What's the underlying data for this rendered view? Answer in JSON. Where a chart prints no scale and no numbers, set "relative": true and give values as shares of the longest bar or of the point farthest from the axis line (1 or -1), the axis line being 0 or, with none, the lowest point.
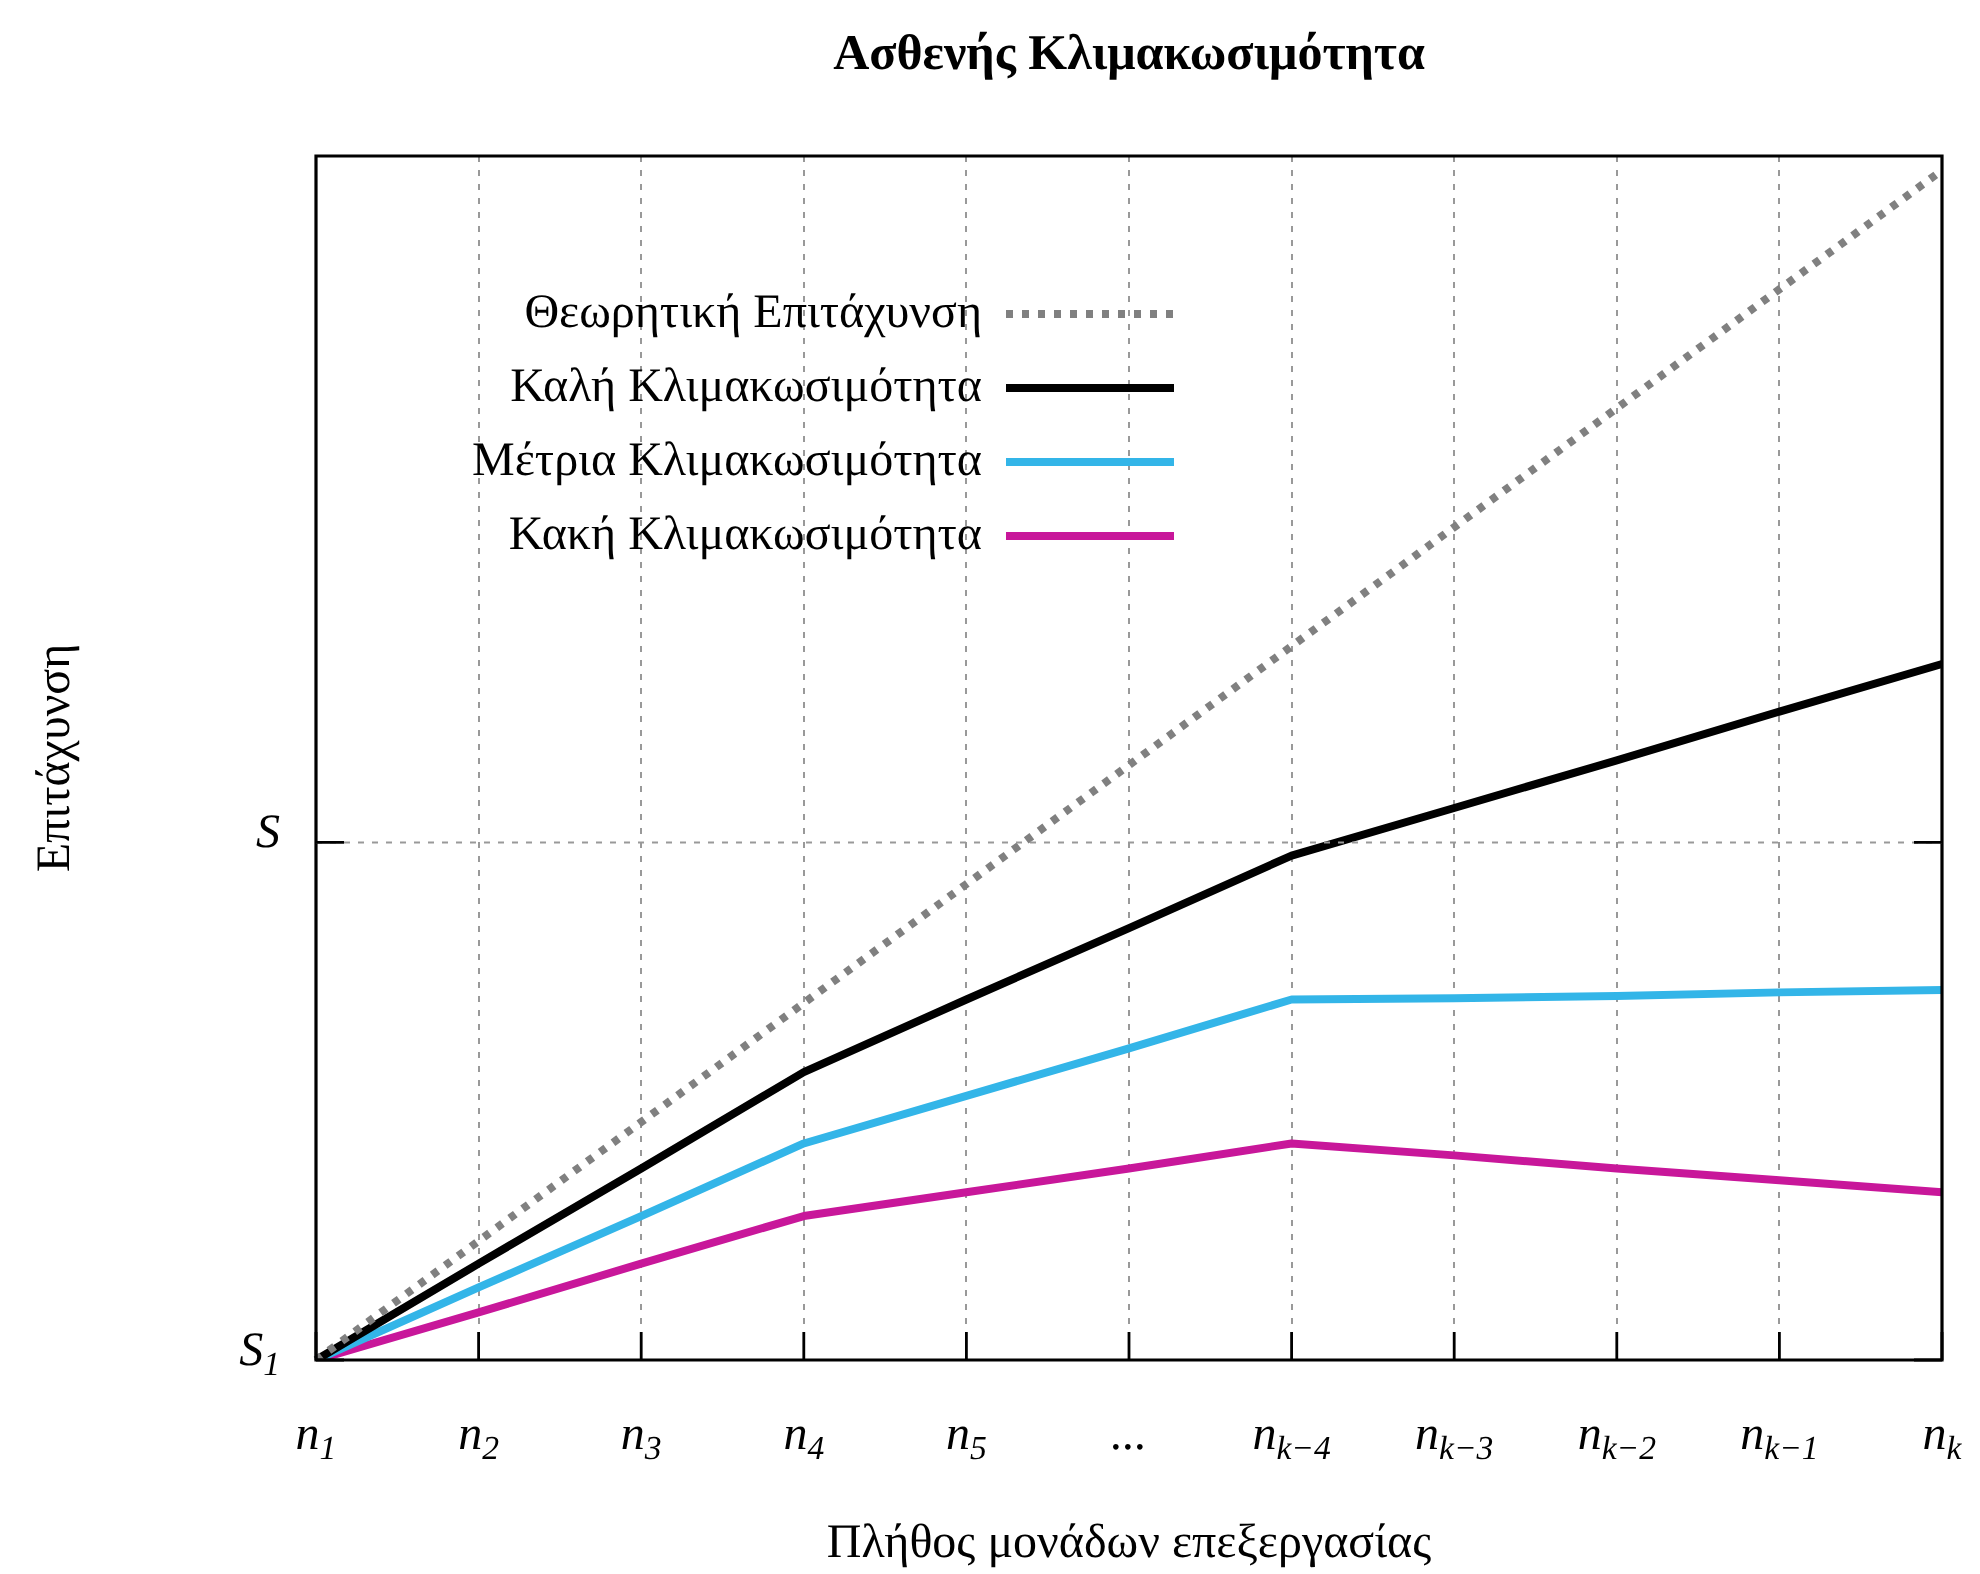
{
  "chart_data": {
    "type": "line",
    "title": "Ασθενής Κλιμακωσιμότητα",
    "xlabel": "Πλήθος μονάδων επεξεργασίας",
    "ylabel": "Επιτάχυνση",
    "categories": [
      "n$_{1}$",
      "n$_{2}$",
      "n$_{3}$",
      "n$_{4}$",
      "n$_{5}$",
      "...",
      "n$_{k−4}$",
      "n$_{k−3}$",
      "n$_{k−2}$",
      "n$_{k−1}$",
      "n$_{k}$"
    ],
    "relative": true,
    "ref_lines": [
      {
        "axis": "y",
        "value": 0,
        "label": "S$_{1}$"
      },
      {
        "axis": "y",
        "value": 0.435,
        "label": "S",
        "color": "#999999",
        "line_style": "dashed"
      }
    ],
    "grid": "x",
    "legend": "top left",
    "marker": "none",
    "series": [
      {
        "name": "Θεωρητική Επιτάχυνση",
        "color": "#808080",
        "line_style": "dotted",
        "values": [
          0,
          0.1,
          0.2,
          0.3,
          0.4,
          0.5,
          0.6,
          0.7,
          0.8,
          0.9,
          1
        ]
      },
      {
        "name": "Καλή Κλιμακωσιμότητα",
        "color": "#000000",
        "line_style": "solid",
        "values": [
          0,
          0.081,
          0.161,
          0.242,
          0.303,
          0.363,
          0.424,
          0.464,
          0.504,
          0.545,
          0.585
        ]
      },
      {
        "name": "Μέτρια Κλιμακωσιμότητα",
        "color": "#33b5e8",
        "line_style": "solid",
        "values": [
          0,
          0.061,
          0.121,
          0.182,
          0.222,
          0.262,
          0.303,
          0.304,
          0.306,
          0.309,
          0.311
        ]
      },
      {
        "name": "Κακή Κλιμακωσιμότητα",
        "color": "#c8179a",
        "line_style": "solid",
        "values": [
          0,
          0.04,
          0.081,
          0.121,
          0.141,
          0.161,
          0.182,
          0.172,
          0.161,
          0.151,
          0.141
        ]
      }
    ]
  }
}
